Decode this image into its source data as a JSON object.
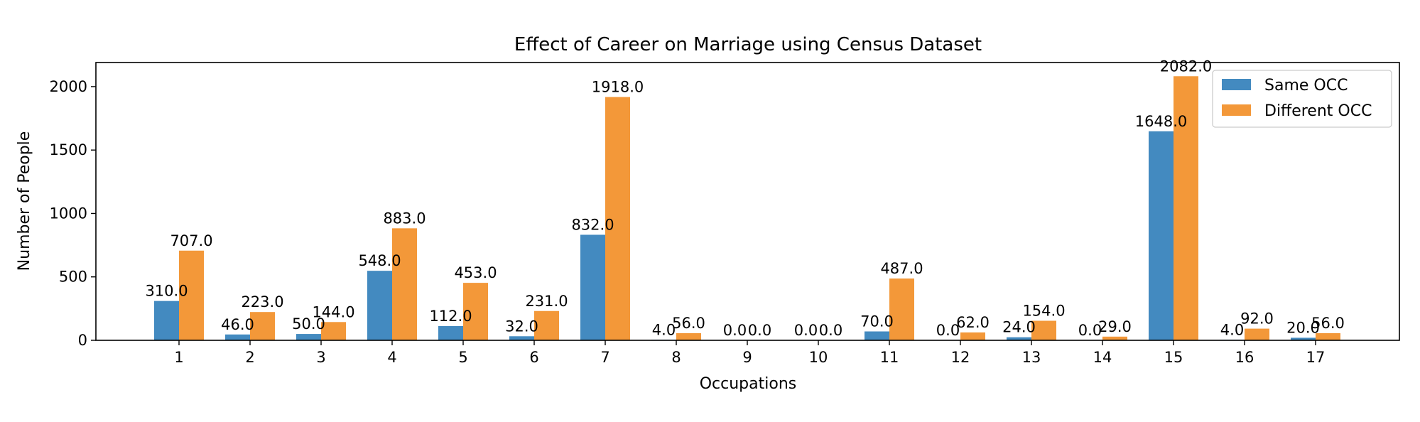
{
  "chart_data": {
    "type": "bar",
    "title": "Effect of Career on Marriage using Census Dataset",
    "xlabel": "Occupations",
    "ylabel": "Number of People",
    "categories": [
      "1",
      "2",
      "3",
      "4",
      "5",
      "6",
      "7",
      "8",
      "9",
      "10",
      "11",
      "12",
      "13",
      "14",
      "15",
      "16",
      "17"
    ],
    "series": [
      {
        "name": "Same OCC",
        "color": "#438ac0",
        "values": [
          310,
          46,
          50,
          548,
          112,
          32,
          832,
          4,
          0,
          0,
          70,
          0,
          24,
          0,
          1648,
          4,
          20
        ],
        "labels": [
          "310.0",
          "46.0",
          "50.0",
          "548.0",
          "112.0",
          "32.0",
          "832.0",
          "4.0",
          "0.0",
          "0.0",
          "70.0",
          "0.0",
          "24.0",
          "0.0",
          "1648.0",
          "4.0",
          "20.0"
        ]
      },
      {
        "name": "Different OCC",
        "color": "#f39839",
        "values": [
          707,
          223,
          144,
          883,
          453,
          231,
          1918,
          56,
          0,
          0,
          487,
          62,
          154,
          29,
          2082,
          92,
          56
        ],
        "labels": [
          "707.0",
          "223.0",
          "144.0",
          "883.0",
          "453.0",
          "231.0",
          "1918.0",
          "56.0",
          "0.0",
          "0.0",
          "487.0",
          "62.0",
          "154.0",
          "29.0",
          "2082.0",
          "92.0",
          "56.0"
        ]
      }
    ],
    "yticks": [
      "0",
      "500",
      "1000",
      "1500",
      "2000"
    ],
    "ylim": [
      0,
      2190
    ],
    "legend_position": "top-right",
    "grid": false
  }
}
